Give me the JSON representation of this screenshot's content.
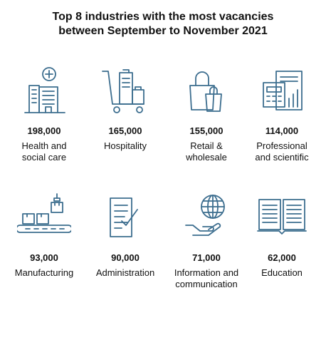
{
  "title": {
    "line1": "Top 8 industries with the most vacancies",
    "line2": "between September to November  2021"
  },
  "icon_color": "#3d6e8f",
  "industries": [
    {
      "value": "198,000",
      "label": "Health and\nsocial care",
      "icon": "hospital-icon"
    },
    {
      "value": "165,000",
      "label": "Hospitality",
      "icon": "luggage-trolley-icon"
    },
    {
      "value": "155,000",
      "label": "Retail &\nwholesale",
      "icon": "shopping-bags-icon"
    },
    {
      "value": "114,000",
      "label": "Professional\nand scientific",
      "icon": "calculator-documents-icon"
    },
    {
      "value": "93,000",
      "label": "Manufacturing",
      "icon": "conveyor-belt-icon"
    },
    {
      "value": "90,000",
      "label": "Administration",
      "icon": "checklist-icon"
    },
    {
      "value": "71,000",
      "label": "Information and\ncommunication",
      "icon": "globe-hand-icon"
    },
    {
      "value": "62,000",
      "label": "Education",
      "icon": "open-book-icon"
    }
  ]
}
